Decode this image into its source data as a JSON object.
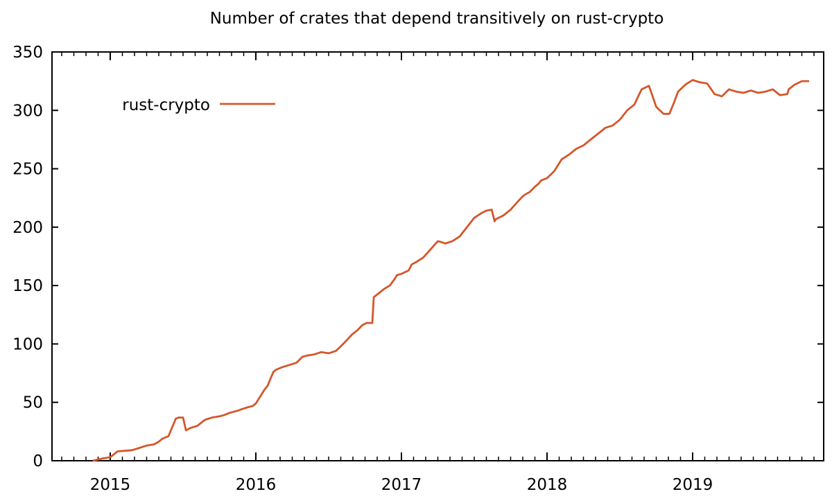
{
  "colors": {
    "series": "#d4562a",
    "axis": "#000000",
    "background": "#ffffff"
  },
  "chart_data": {
    "type": "line",
    "title": "Number of crates that depend transitively on rust-crypto",
    "xlabel": "",
    "ylabel": "",
    "xlim": [
      2014.6,
      2019.9
    ],
    "ylim": [
      0,
      350
    ],
    "grid": false,
    "legend": {
      "position": "top-left",
      "entries": [
        "rust-crypto"
      ]
    },
    "x_ticks": [
      2015,
      2016,
      2017,
      2018,
      2019
    ],
    "x_tick_labels": [
      "2015",
      "2016",
      "2017",
      "2018",
      "2019"
    ],
    "y_ticks": [
      0,
      50,
      100,
      150,
      200,
      250,
      300,
      350
    ],
    "y_tick_labels": [
      "0",
      "50",
      "100",
      "150",
      "200",
      "250",
      "300",
      "350"
    ],
    "series": [
      {
        "name": "rust-crypto",
        "x": [
          2014.88,
          2014.95,
          2015.0,
          2015.02,
          2015.05,
          2015.15,
          2015.2,
          2015.25,
          2015.3,
          2015.33,
          2015.36,
          2015.4,
          2015.43,
          2015.45,
          2015.47,
          2015.5,
          2015.52,
          2015.55,
          2015.6,
          2015.65,
          2015.7,
          2015.75,
          2015.78,
          2015.8,
          2015.82,
          2015.85,
          2015.88,
          2015.9,
          2015.95,
          2015.98,
          2016.0,
          2016.03,
          2016.06,
          2016.08,
          2016.1,
          2016.12,
          2016.14,
          2016.18,
          2016.23,
          2016.28,
          2016.32,
          2016.35,
          2016.4,
          2016.45,
          2016.5,
          2016.55,
          2016.6,
          2016.63,
          2016.66,
          2016.7,
          2016.73,
          2016.76,
          2016.78,
          2016.8,
          2016.81,
          2016.83,
          2016.86,
          2016.88,
          2016.92,
          2016.95,
          2016.97,
          2017.0,
          2017.05,
          2017.07,
          2017.1,
          2017.15,
          2017.2,
          2017.25,
          2017.28,
          2017.3,
          2017.35,
          2017.4,
          2017.45,
          2017.5,
          2017.55,
          2017.58,
          2017.62,
          2017.64,
          2017.65,
          2017.7,
          2017.75,
          2017.8,
          2017.83,
          2017.85,
          2017.88,
          2017.92,
          2017.94,
          2017.96,
          2018.0,
          2018.05,
          2018.1,
          2018.15,
          2018.2,
          2018.25,
          2018.3,
          2018.35,
          2018.4,
          2018.45,
          2018.5,
          2018.55,
          2018.6,
          2018.63,
          2018.65,
          2018.7,
          2018.75,
          2018.8,
          2018.84,
          2018.85,
          2018.87,
          2018.9,
          2018.95,
          2019.0,
          2019.05,
          2019.1,
          2019.15,
          2019.2,
          2019.25,
          2019.3,
          2019.35,
          2019.4,
          2019.45,
          2019.5,
          2019.55,
          2019.6,
          2019.65,
          2019.66,
          2019.7,
          2019.75,
          2019.8
        ],
        "values": [
          0,
          2,
          3,
          5,
          8,
          9,
          11,
          13,
          14,
          16,
          19,
          21,
          30,
          36,
          37,
          37,
          26,
          28,
          30,
          35,
          37,
          38,
          39,
          40,
          41,
          42,
          43,
          44,
          46,
          47,
          49,
          55,
          61,
          64,
          70,
          76,
          78,
          80,
          82,
          84,
          89,
          90,
          91,
          93,
          92,
          94,
          100,
          104,
          108,
          112,
          116,
          118,
          118,
          118,
          140,
          142,
          145,
          147,
          150,
          155,
          159,
          160,
          163,
          168,
          170,
          174,
          181,
          188,
          187,
          186,
          188,
          192,
          200,
          208,
          212,
          214,
          215,
          205,
          207,
          210,
          215,
          222,
          226,
          228,
          230,
          235,
          237,
          240,
          242,
          248,
          258,
          262,
          267,
          270,
          275,
          280,
          285,
          287,
          292,
          300,
          305,
          313,
          318,
          321,
          303,
          297,
          297,
          300,
          306,
          316,
          322,
          326,
          324,
          323,
          314,
          312,
          318,
          316,
          315,
          317,
          315,
          316,
          318,
          313,
          314,
          318,
          322,
          325,
          325
        ]
      }
    ]
  }
}
